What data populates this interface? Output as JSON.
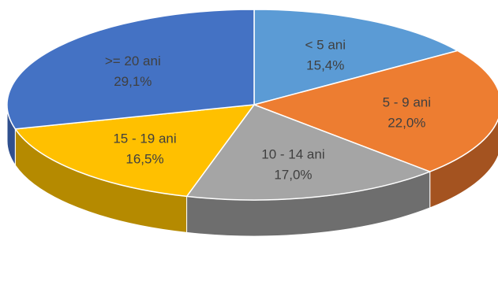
{
  "chart_data": {
    "type": "pie",
    "style": "3d",
    "categories": [
      "< 5 ani",
      "5 - 9 ani",
      "10 - 14 ani",
      "15 - 19 ani",
      ">= 20 ani"
    ],
    "values": [
      15.4,
      22.0,
      17.0,
      16.5,
      29.1
    ],
    "data_labels": [
      "15,4%",
      "22,0%",
      "17,0%",
      "16,5%",
      "29,1%"
    ],
    "colors": [
      "#5B9BD5",
      "#ED7D31",
      "#A5A5A5",
      "#FFC000",
      "#4472C4"
    ],
    "side_colors": [
      "#3A6C9A",
      "#A45320",
      "#6E6E6E",
      "#B58A00",
      "#2F4F8E"
    ],
    "title": "",
    "legend": "none"
  }
}
